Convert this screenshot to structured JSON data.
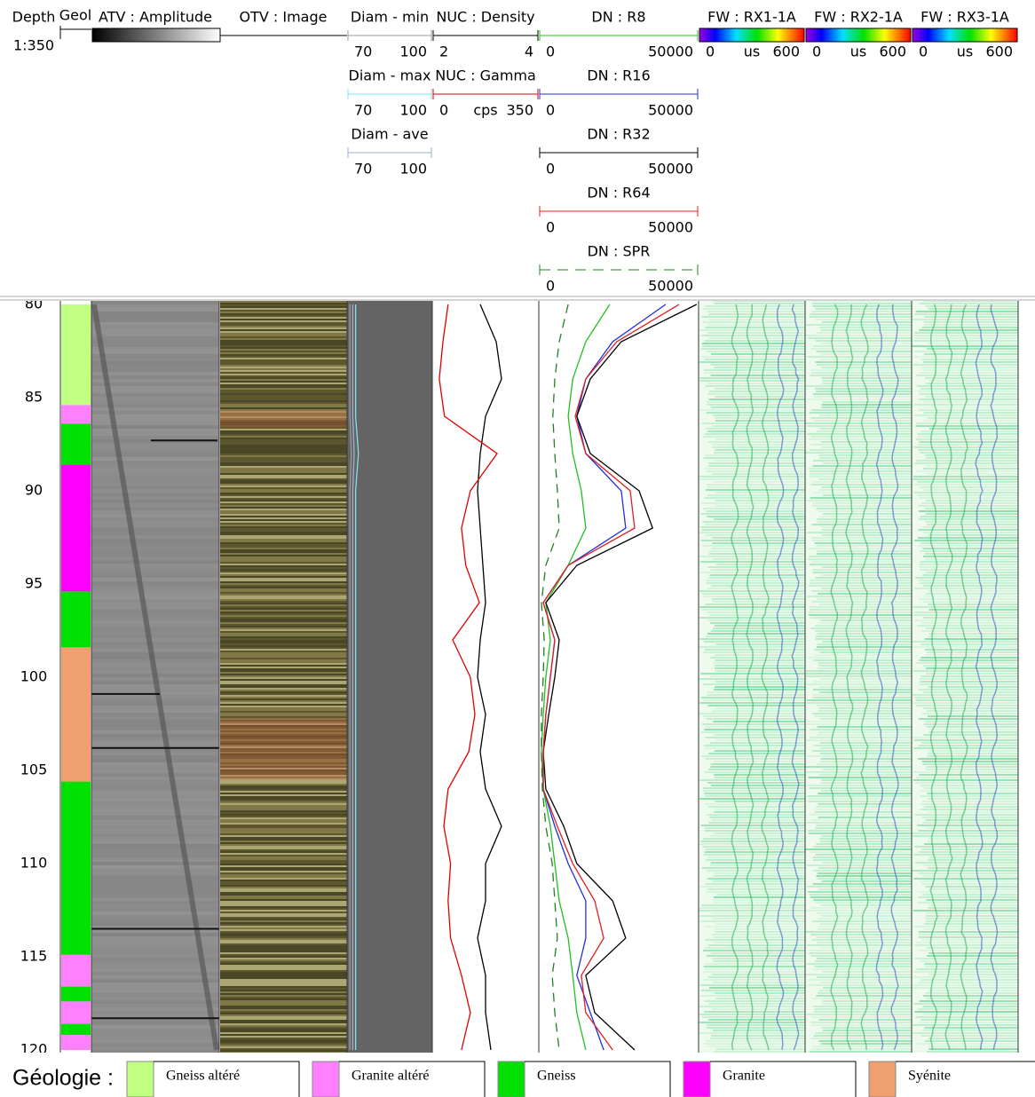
{
  "chart_data": {
    "type": "well-log",
    "depth": {
      "label": "Depth",
      "scale": "1:350",
      "ylim": [
        80,
        120
      ],
      "yticks": [
        80,
        85,
        90,
        95,
        100,
        105,
        110,
        115,
        120
      ]
    },
    "x": [
      80,
      82,
      84,
      86,
      88,
      90,
      92,
      94,
      96,
      98,
      100,
      102,
      104,
      106,
      108,
      110,
      112,
      114,
      116,
      118,
      120
    ],
    "geology": {
      "title": "Geol",
      "intervals": [
        {
          "top": 80,
          "bottom": 85.4,
          "color": "#c0ff80"
        },
        {
          "top": 85.4,
          "bottom": 86.4,
          "color": "#ff80ff"
        },
        {
          "top": 86.4,
          "bottom": 88.6,
          "color": "#00e000"
        },
        {
          "top": 88.6,
          "bottom": 95.4,
          "color": "#ff00ff"
        },
        {
          "top": 95.4,
          "bottom": 98.4,
          "color": "#00e000"
        },
        {
          "top": 98.4,
          "bottom": 105.6,
          "color": "#f0a070"
        },
        {
          "top": 105.6,
          "bottom": 114.9,
          "color": "#00e000"
        },
        {
          "top": 114.9,
          "bottom": 116.6,
          "color": "#ff80ff"
        },
        {
          "top": 116.6,
          "bottom": 117.4,
          "color": "#00e000"
        },
        {
          "top": 117.4,
          "bottom": 118.6,
          "color": "#ff80ff"
        },
        {
          "top": 118.6,
          "bottom": 119.2,
          "color": "#00e000"
        },
        {
          "top": 119.2,
          "bottom": 120,
          "color": "#ff80ff"
        }
      ]
    },
    "atv": {
      "title": "ATV : Amplitude"
    },
    "otv": {
      "title": "OTV : Image"
    },
    "tracks": [
      {
        "curves": [
          {
            "name": "Diam - min",
            "color": "#999999",
            "xlim": [
              70,
              100
            ],
            "values": [
              71,
              71,
              71,
              71,
              71.5,
              71,
              71,
              71,
              71,
              71,
              71,
              71,
              71,
              71,
              71,
              71,
              71,
              71,
              71,
              71,
              71
            ]
          },
          {
            "name": "Diam - max",
            "color": "#80e0f0",
            "xlim": [
              70,
              100
            ],
            "values": [
              73,
              73,
              73,
              73,
              74,
              73,
              73,
              73,
              73,
              73,
              73,
              73,
              73,
              73,
              73,
              73,
              73,
              73,
              73,
              73,
              73
            ]
          },
          {
            "name": "Diam - ave",
            "color": "#9ab0d0",
            "xlim": [
              70,
              100
            ],
            "values": [
              72,
              72,
              72,
              72,
              72.5,
              72,
              72,
              72,
              72,
              72,
              72,
              72,
              72,
              72,
              72,
              72,
              72,
              72,
              72,
              72,
              72
            ]
          }
        ]
      },
      {
        "curves": [
          {
            "name": "NUC : Density",
            "color": "#000000",
            "xlim": [
              2,
              4
            ],
            "values": [
              2.9,
              3.2,
              3.3,
              3.0,
              2.9,
              2.85,
              2.9,
              2.95,
              3.0,
              2.9,
              2.85,
              3.0,
              2.9,
              3.0,
              3.3,
              3.0,
              3.0,
              2.85,
              3.0,
              3.0,
              3.1
            ]
          },
          {
            "name": "NUC : Gamma",
            "color": "#e00000",
            "unit": "cps",
            "xlim": [
              0,
              350
            ],
            "values": [
              52,
              35,
              23,
              40,
              213,
              125,
              96,
              110,
              155,
              67,
              125,
              140,
              120,
              52,
              38,
              60,
              52,
              60,
              96,
              125,
              96
            ]
          }
        ]
      },
      {
        "curves": [
          {
            "name": "DN : R8",
            "color": "#20c020",
            "xlim": [
              0,
              50000
            ],
            "values": [
              22200,
              14700,
              10600,
              9200,
              10600,
              13300,
              14700,
              9200,
              2200,
              3600,
              2200,
              1400,
              800,
              1400,
              3600,
              5000,
              6400,
              9200,
              10600,
              11900,
              14700
            ]
          },
          {
            "name": "DN : R16",
            "color": "#2030e0",
            "xlim": [
              0,
              50000
            ],
            "values": [
              39700,
              23100,
              14700,
              11900,
              14700,
              25800,
              27200,
              9200,
              1400,
              5000,
              3600,
              2200,
              1400,
              1400,
              5000,
              9200,
              14700,
              14700,
              11900,
              16100,
              20300
            ]
          },
          {
            "name": "DN : R32",
            "color": "#000000",
            "xlim": [
              0,
              50000
            ],
            "values": [
              49400,
              25800,
              16100,
              11900,
              16100,
              31400,
              35600,
              11900,
              2200,
              6400,
              5000,
              3100,
              1400,
              2200,
              7800,
              11900,
              23100,
              27200,
              14700,
              17500,
              30000
            ]
          },
          {
            "name": "DN : R64",
            "color": "#e02020",
            "xlim": [
              0,
              50000
            ],
            "values": [
              43900,
              24400,
              14700,
              11400,
              14700,
              28600,
              30000,
              9200,
              1400,
              5000,
              3600,
              2200,
              1400,
              1400,
              5800,
              10600,
              17500,
              20300,
              13300,
              14700,
              23100
            ]
          },
          {
            "name": "DN : SPR",
            "color": "#208020",
            "dashed": true,
            "xlim": [
              0,
              50000
            ],
            "values": [
              9200,
              6400,
              5000,
              4400,
              5000,
              5800,
              6400,
              2200,
              800,
              1700,
              1400,
              800,
              800,
              1100,
              2200,
              4200,
              5000,
              5800,
              4200,
              5000,
              6400
            ]
          }
        ]
      }
    ],
    "fw": [
      {
        "title": "FW : RX1-1A",
        "unit": "us",
        "xlim": [
          0,
          600
        ]
      },
      {
        "title": "FW : RX2-1A",
        "unit": "us",
        "xlim": [
          0,
          600
        ]
      },
      {
        "title": "FW : RX3-1A",
        "unit": "us",
        "xlim": [
          0,
          600
        ]
      }
    ],
    "legend": {
      "title": "Géologie :",
      "items": [
        {
          "name": "Gneiss altéré",
          "color": "#c0ff80"
        },
        {
          "name": "Granite altéré",
          "color": "#ff80ff"
        },
        {
          "name": "Gneiss",
          "color": "#00e000"
        },
        {
          "name": "Granite",
          "color": "#ff00ff"
        },
        {
          "name": "Syénite",
          "color": "#f0a070"
        }
      ]
    }
  }
}
